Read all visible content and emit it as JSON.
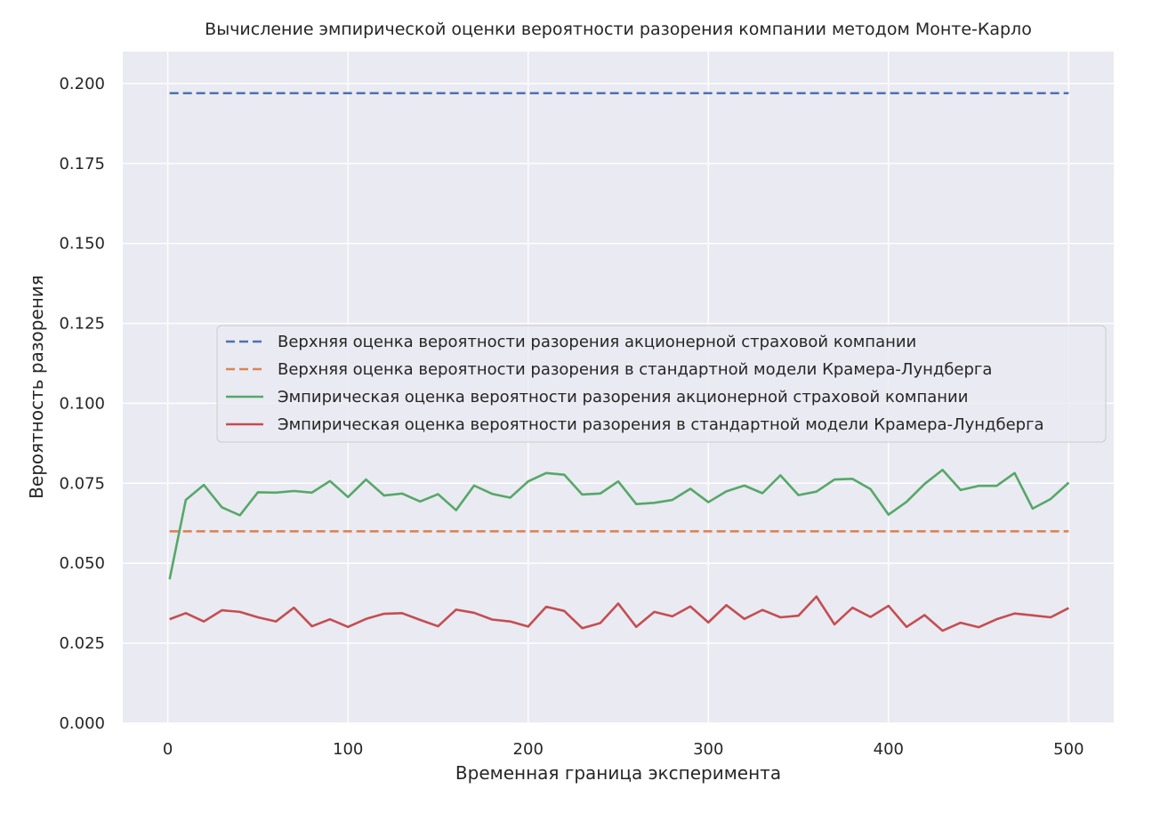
{
  "chart_data": {
    "type": "line",
    "title": "Вычисление эмпирической оценки вероятности разорения компании методом Монте-Карло",
    "xlabel": "Временная граница эксперимента",
    "ylabel": "Вероятность разорения",
    "xlim": [
      -25,
      525
    ],
    "ylim": [
      0.0,
      0.21
    ],
    "xticks": [
      0,
      100,
      200,
      300,
      400,
      500
    ],
    "xtick_labels": [
      "0",
      "100",
      "200",
      "300",
      "400",
      "500"
    ],
    "yticks": [
      0.0,
      0.025,
      0.05,
      0.075,
      0.1,
      0.125,
      0.15,
      0.175,
      0.2
    ],
    "ytick_labels": [
      "0.000",
      "0.025",
      "0.050",
      "0.075",
      "0.100",
      "0.125",
      "0.150",
      "0.175",
      "0.200"
    ],
    "grid": true,
    "legend_position": "center-right",
    "x": [
      1,
      10,
      20,
      30,
      40,
      50,
      60,
      70,
      80,
      90,
      100,
      110,
      120,
      130,
      140,
      150,
      160,
      170,
      180,
      190,
      200,
      210,
      220,
      230,
      240,
      250,
      260,
      270,
      280,
      290,
      300,
      310,
      320,
      330,
      340,
      350,
      360,
      370,
      380,
      390,
      400,
      410,
      420,
      430,
      440,
      450,
      460,
      470,
      480,
      490,
      500
    ],
    "series": [
      {
        "name": "Верхняя оценка вероятности разорения акционерной страховой компании",
        "color": "#4c72b0",
        "style": "dashed",
        "x": [
          1,
          500
        ],
        "values": [
          0.197,
          0.197
        ]
      },
      {
        "name": "Верхняя оценка вероятности разорения в стандартной модели Крамера-Лундберга",
        "color": "#dd8452",
        "style": "dashed",
        "x": [
          1,
          500
        ],
        "values": [
          0.06,
          0.06
        ]
      },
      {
        "name": "Эмпирическая оценка вероятности разорения акционерной страховой компании",
        "color": "#55a868",
        "style": "solid",
        "values": [
          0.045,
          0.0698,
          0.0745,
          0.0675,
          0.065,
          0.0722,
          0.0721,
          0.0726,
          0.0721,
          0.0757,
          0.0707,
          0.0762,
          0.0712,
          0.0718,
          0.0693,
          0.0716,
          0.0666,
          0.0743,
          0.0717,
          0.0705,
          0.0756,
          0.0782,
          0.0777,
          0.0715,
          0.0718,
          0.0756,
          0.0685,
          0.0689,
          0.0698,
          0.0733,
          0.0691,
          0.0725,
          0.0743,
          0.0719,
          0.0775,
          0.0713,
          0.0724,
          0.0762,
          0.0764,
          0.0732,
          0.0652,
          0.0692,
          0.0748,
          0.0792,
          0.0729,
          0.0742,
          0.0742,
          0.0782,
          0.0671,
          0.0701,
          0.0752
        ]
      },
      {
        "name": "Эмпирическая оценка вероятности разорения в стандартной модели Крамера-Лундберга",
        "color": "#c44e52",
        "style": "solid",
        "values": [
          0.0325,
          0.0344,
          0.0318,
          0.0353,
          0.0348,
          0.0331,
          0.0318,
          0.0361,
          0.0303,
          0.0325,
          0.0301,
          0.0326,
          0.0342,
          0.0344,
          0.0323,
          0.0303,
          0.0355,
          0.0345,
          0.0324,
          0.0318,
          0.0302,
          0.0364,
          0.0351,
          0.0297,
          0.0313,
          0.0374,
          0.0301,
          0.0348,
          0.0334,
          0.0365,
          0.0315,
          0.0369,
          0.0326,
          0.0354,
          0.0331,
          0.0336,
          0.0396,
          0.0309,
          0.0361,
          0.0332,
          0.0367,
          0.0301,
          0.0338,
          0.0289,
          0.0314,
          0.03,
          0.0325,
          0.0343,
          0.0337,
          0.0331,
          0.036
        ]
      }
    ]
  },
  "style": {
    "plot_background": "#eaeaf2",
    "grid_color": "#ffffff",
    "legend_background": "#eaeaf2",
    "legend_border": "#cccccc"
  }
}
